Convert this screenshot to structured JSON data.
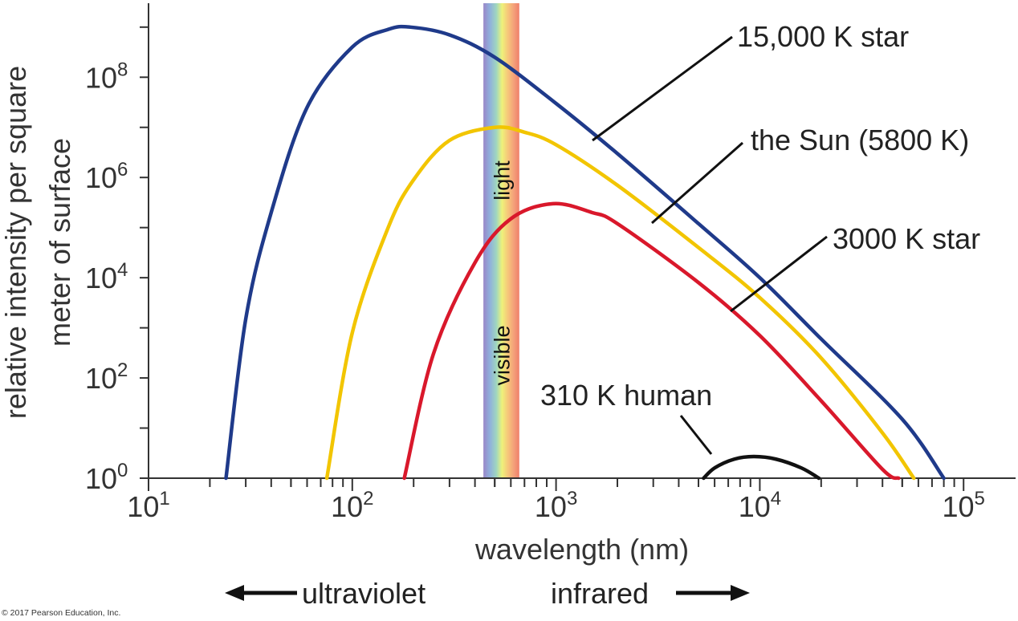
{
  "chart_data": {
    "type": "line",
    "xscale": "log",
    "yscale": "log",
    "xlim": [
      10,
      180000
    ],
    "ylim": [
      1,
      3000000000.0
    ],
    "xlabel": "wavelength (nm)",
    "ylabel": [
      "relative intensity per square",
      "meter of surface"
    ],
    "x_ticks": [
      {
        "value": 10,
        "base": "10",
        "exp": "1"
      },
      {
        "value": 100,
        "base": "10",
        "exp": "2"
      },
      {
        "value": 1000,
        "base": "10",
        "exp": "3"
      },
      {
        "value": 10000,
        "base": "10",
        "exp": "4"
      },
      {
        "value": 100000,
        "base": "10",
        "exp": "5"
      }
    ],
    "y_ticks": [
      {
        "value": 1,
        "base": "10",
        "exp": "0"
      },
      {
        "value": 100,
        "base": "10",
        "exp": "2"
      },
      {
        "value": 10000,
        "base": "10",
        "exp": "4"
      },
      {
        "value": 1000000,
        "base": "10",
        "exp": "6"
      },
      {
        "value": 100000000,
        "base": "10",
        "exp": "8"
      }
    ],
    "series": [
      {
        "name": "15,000 K star",
        "color": "#1f3a8a",
        "peak_nm": 193,
        "x": [
          24,
          30,
          40,
          60,
          100,
          150,
          193,
          300,
          500,
          1000,
          2000,
          5000,
          10000,
          20000,
          50000,
          80000
        ],
        "y": [
          1,
          1500,
          200000,
          25000000,
          400000000,
          900000000,
          1000000000,
          700000000,
          250000000,
          30000000,
          3000000,
          120000,
          10000,
          600,
          15,
          1
        ]
      },
      {
        "name": "the Sun (5800 K)",
        "color": "#f2c500",
        "peak_nm": 500,
        "x": [
          75,
          100,
          150,
          200,
          300,
          500,
          700,
          1000,
          2000,
          5000,
          10000,
          20000,
          40000,
          57000
        ],
        "y": [
          1,
          800,
          100000,
          900000,
          5500000,
          10000000,
          8000000,
          4500000,
          700000,
          40000,
          4000,
          250,
          8,
          1
        ]
      },
      {
        "name": "3000 K star",
        "color": "#d9182b",
        "peak_nm": 966,
        "x": [
          180,
          250,
          400,
          600,
          966,
          1500,
          2000,
          5000,
          10000,
          20000,
          40000,
          48000
        ],
        "y": [
          1,
          300,
          20000,
          150000,
          300000,
          200000,
          120000,
          8000,
          700,
          35,
          1.5,
          1
        ]
      },
      {
        "name": "310 K human",
        "color": "#111111",
        "peak_nm": 9350,
        "x": [
          5300,
          6000,
          7500,
          9350,
          12000,
          16000,
          19500
        ],
        "y": [
          1,
          1.6,
          2.4,
          2.7,
          2.4,
          1.6,
          1
        ]
      }
    ],
    "labels": {
      "star15000": "15,000 K star",
      "sun": "the Sun (5800 K)",
      "star3000": "3000 K star",
      "human": "310 K human"
    },
    "visible_band": {
      "from_nm": 440,
      "to_nm": 660,
      "text_top": "light",
      "text_bottom": "visible"
    },
    "grid": false
  },
  "arrows": {
    "left": "ultraviolet",
    "right": "infrared"
  },
  "credit": "© 2017 Pearson Education, Inc."
}
